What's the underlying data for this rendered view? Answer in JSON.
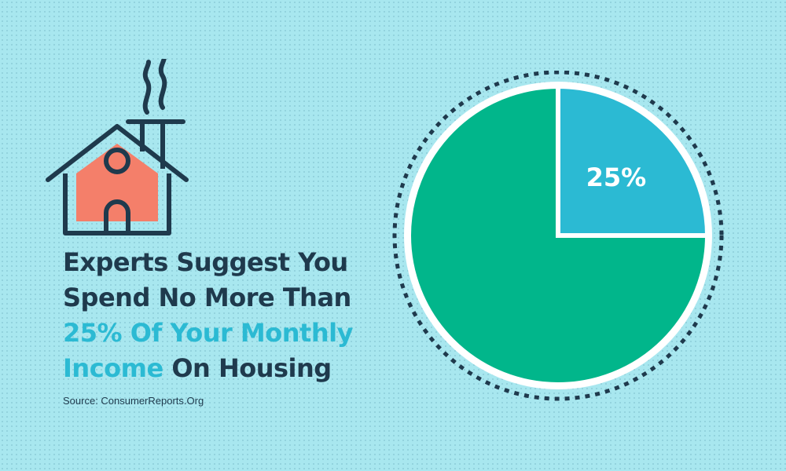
{
  "colors": {
    "background": "#a8e7ef",
    "navy": "#1f3a4d",
    "accent": "#2bbad3",
    "house_fill": "#f47f6a",
    "pie_major": "#01b68b",
    "pie_minor": "#2bbad3"
  },
  "illustration": {
    "icon": "house-icon"
  },
  "headline": {
    "line1": "Experts Suggest You",
    "line2": "Spend No More Than",
    "line3_highlight": "25% Of Your Monthly",
    "line4_highlight": "Income",
    "line4_rest": " On Housing"
  },
  "source": "Source: ConsumerReports.Org",
  "chart_data": {
    "type": "pie",
    "title": "",
    "slices": [
      {
        "label": "25%",
        "value": 25,
        "color": "#2bbad3"
      },
      {
        "label": "",
        "value": 75,
        "color": "#01b68b"
      }
    ],
    "start_angle_deg": 0,
    "legend": "none"
  }
}
